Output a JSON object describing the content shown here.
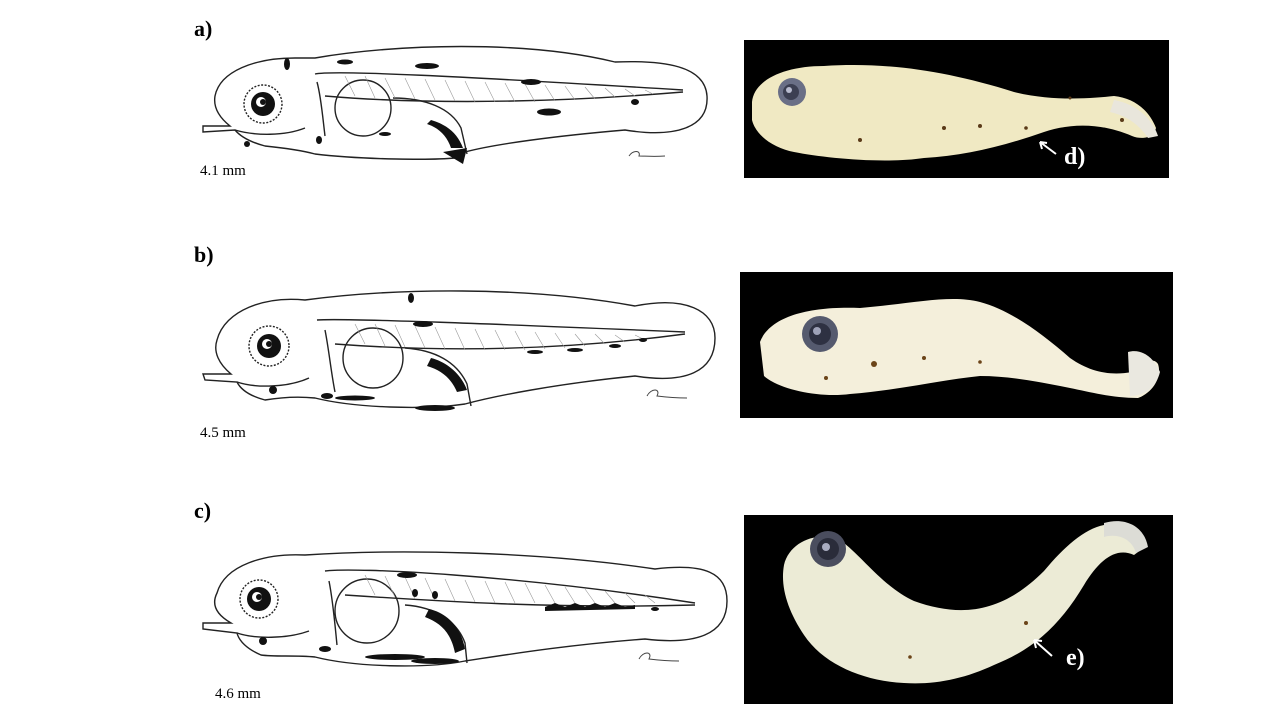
{
  "figure": {
    "panels": [
      {
        "label": "a)",
        "size": "4.1 mm"
      },
      {
        "label": "b)",
        "size": "4.5 mm"
      },
      {
        "label": "c)",
        "size": "4.6 mm"
      }
    ],
    "photos": [
      {
        "label": "d)"
      },
      {
        "label": "e)"
      }
    ]
  }
}
